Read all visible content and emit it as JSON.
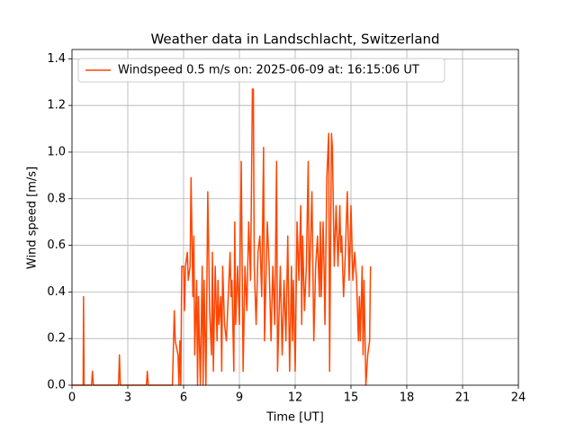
{
  "chart_data": {
    "type": "line",
    "title": "Weather data in Landschlacht, Switzerland",
    "xlabel": "Time [UT]",
    "ylabel": "Wind speed [m/s]",
    "x": [
      0,
      0.6,
      0.62,
      0.65,
      1.05,
      1.1,
      1.15,
      2.5,
      2.55,
      2.6,
      4.0,
      4.05,
      4.1,
      5.4,
      5.5,
      5.55,
      5.7,
      5.75,
      5.8,
      5.85,
      5.9,
      6.0,
      6.05,
      6.1,
      6.2,
      6.25,
      6.35,
      6.4,
      6.5,
      6.55,
      6.6,
      6.7,
      6.75,
      6.8,
      6.9,
      7.0,
      7.05,
      7.1,
      7.2,
      7.3,
      7.4,
      7.5,
      7.55,
      7.6,
      7.7,
      7.8,
      7.85,
      7.9,
      8.0,
      8.05,
      8.1,
      8.2,
      8.3,
      8.4,
      8.5,
      8.55,
      8.6,
      8.7,
      8.75,
      8.8,
      8.9,
      9.0,
      9.1,
      9.2,
      9.3,
      9.4,
      9.5,
      9.6,
      9.7,
      9.75,
      9.8,
      9.9,
      10.0,
      10.1,
      10.2,
      10.3,
      10.35,
      10.5,
      10.6,
      10.7,
      10.8,
      10.9,
      11.0,
      11.05,
      11.2,
      11.3,
      11.4,
      11.5,
      11.6,
      11.7,
      11.8,
      11.85,
      11.9,
      12.0,
      12.1,
      12.2,
      12.3,
      12.35,
      12.4,
      12.5,
      12.6,
      12.7,
      12.75,
      12.9,
      13.0,
      13.1,
      13.2,
      13.3,
      13.35,
      13.4,
      13.5,
      13.55,
      13.6,
      13.7,
      13.8,
      13.85,
      13.95,
      14.0,
      14.1,
      14.2,
      14.3,
      14.4,
      14.45,
      14.5,
      14.6,
      14.7,
      14.8,
      14.9,
      15.0,
      15.1,
      15.2,
      15.3,
      15.4,
      15.45,
      15.5,
      15.6,
      15.65,
      15.7,
      15.8,
      15.9,
      16.0,
      16.05
    ],
    "series": [
      {
        "name": "Windspeed 0.5 m/s on: 2025-06-09 at: 16:15:06 UT",
        "color": "#ff4500",
        "values": [
          0,
          0,
          0.38,
          0,
          0,
          0.06,
          0,
          0,
          0.13,
          0,
          0,
          0.06,
          0,
          0,
          0.32,
          0.19,
          0.13,
          0,
          0.19,
          0,
          0.51,
          0.51,
          0.32,
          0.51,
          0.57,
          0.45,
          0.51,
          0.89,
          0.38,
          0.64,
          0.13,
          0.45,
          0,
          0.38,
          0,
          0.51,
          0,
          0.45,
          0,
          0.83,
          0.32,
          0.13,
          0.57,
          0.06,
          0.51,
          0.19,
          0.45,
          0.26,
          0.38,
          0.06,
          0.51,
          0.26,
          0.19,
          0.38,
          0.57,
          0.38,
          0.45,
          0.06,
          0.7,
          0.26,
          0.51,
          0.26,
          0.96,
          0.06,
          0.51,
          0.32,
          0.7,
          0.45,
          1.27,
          1.27,
          0.51,
          0.26,
          0.57,
          0.64,
          0.38,
          1.02,
          0.19,
          0.7,
          0.51,
          0.19,
          0.51,
          0.26,
          0.96,
          0.06,
          0.51,
          0.13,
          0.45,
          0.19,
          0.64,
          0.06,
          0.51,
          0.19,
          0.45,
          0.06,
          0.7,
          0.45,
          0.77,
          0.26,
          0.64,
          0.32,
          0.51,
          0.96,
          0.38,
          0.83,
          0.19,
          0.51,
          0.64,
          0.38,
          0.7,
          0.38,
          0.7,
          0.51,
          0.26,
          0.89,
          1.08,
          0.06,
          1.08,
          1.02,
          0.51,
          0.77,
          0.51,
          0.77,
          0.57,
          0.64,
          0.38,
          0.57,
          0.83,
          0.45,
          0.77,
          0.45,
          0.57,
          0.45,
          0.19,
          0.38,
          0.19,
          0.51,
          0.13,
          0.45,
          0,
          0.13,
          0.19,
          0.51
        ]
      }
    ],
    "xlim": [
      0,
      24
    ],
    "xticks": [
      0,
      3,
      6,
      9,
      12,
      15,
      18,
      21,
      24
    ],
    "ylim": [
      0,
      1.44
    ],
    "yticks": [
      {
        "value": 0,
        "label": "0.0"
      },
      0.2,
      0.4,
      0.6,
      0.8,
      {
        "value": 1,
        "label": "1.0"
      },
      1.2,
      1.4
    ],
    "grid": true,
    "legend": "upper left"
  }
}
